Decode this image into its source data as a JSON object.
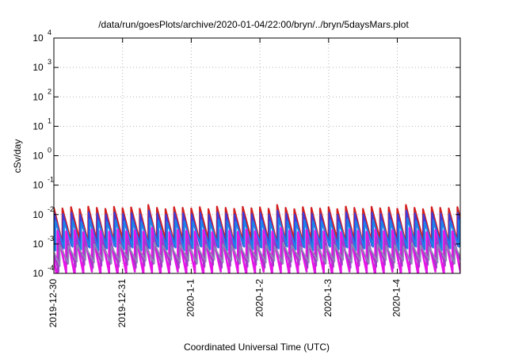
{
  "chart_data": {
    "type": "line",
    "title": "/data/run/goesPlots/archive/2020-01-04/22:00/bryn/../bryn/5daysMars.plot",
    "xlabel": "Coordinated Universal Time (UTC)",
    "ylabel": "cSv/day",
    "yscale": "log",
    "ylim": [
      0.0001,
      10000
    ],
    "xlim": [
      "2019-12-30 00:00",
      "2020-01-04 22:00"
    ],
    "grid": true,
    "x_ticks": [
      "2019-12-30",
      "2019-12-31",
      "2020-1-1",
      "2020-1-2",
      "2020-1-3",
      "2020-1-4"
    ],
    "y_ticks": [
      {
        "base": "10",
        "exp": "-4"
      },
      {
        "base": "10",
        "exp": "-3"
      },
      {
        "base": "10",
        "exp": "-2"
      },
      {
        "base": "10",
        "exp": "-1"
      },
      {
        "base": "10",
        "exp": "0"
      },
      {
        "base": "10",
        "exp": "1"
      },
      {
        "base": "10",
        "exp": "2"
      },
      {
        "base": "10",
        "exp": "3"
      },
      {
        "base": "10",
        "exp": "4"
      }
    ],
    "cycle_hours": 3,
    "series": [
      {
        "color": "#d21e1e",
        "peak": 0.017,
        "trough": 0.0012,
        "phase_hours": 0.0,
        "width": 2.2
      },
      {
        "color": "#3c3cdc",
        "peak": 0.011,
        "trough": 0.0008,
        "phase_hours": 0.15,
        "width": 2.0
      },
      {
        "color": "#1e82e6",
        "peak": 0.006,
        "trough": 0.0007,
        "phase_hours": 0.55,
        "width": 2.2
      },
      {
        "color": "#e614e6",
        "peak": 0.0028,
        "trough": 0.0001,
        "phase_hours": 1.3,
        "width": 2.6
      },
      {
        "color": "#a03cc8",
        "peak": 0.0015,
        "trough": 0.00018,
        "phase_hours": 1.7,
        "width": 1.8
      },
      {
        "color": "#8c8cb4",
        "peak": 0.0009,
        "trough": 0.00025,
        "phase_hours": 2.1,
        "width": 1.6
      }
    ],
    "peak_variation": [
      1.0,
      0.95,
      1.05,
      0.9,
      1.1,
      1.0,
      0.92,
      1.08,
      0.97,
      1.03,
      0.93,
      1.25,
      1.0,
      0.9,
      1.05
    ]
  }
}
